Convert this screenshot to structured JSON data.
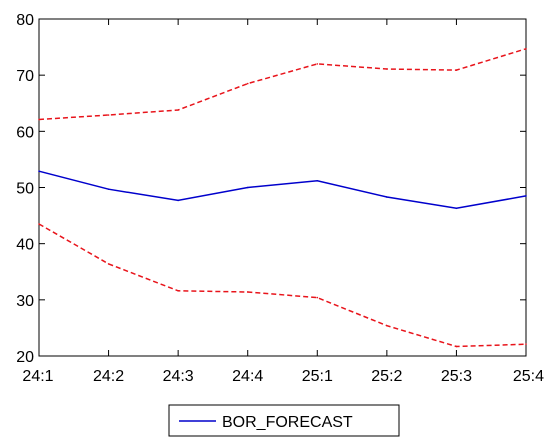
{
  "chart_data": {
    "type": "line",
    "categories": [
      "24:1",
      "24:2",
      "24:3",
      "24:4",
      "25:1",
      "25:2",
      "25:3",
      "25:4"
    ],
    "ylim": [
      20,
      80
    ],
    "yticks": [
      20,
      30,
      40,
      50,
      60,
      70,
      80
    ],
    "grid": false,
    "legend_position": "bottom-center",
    "series": [
      {
        "name": "BOR_FORECAST",
        "style": "solid",
        "color": "#0000cc",
        "values": [
          52.9,
          49.7,
          47.7,
          50.0,
          51.2,
          48.3,
          46.3,
          48.5
        ]
      },
      {
        "name": "",
        "style": "dashed",
        "color": "#e8141b",
        "values": [
          62.1,
          62.9,
          63.8,
          68.5,
          72.0,
          71.1,
          70.9,
          74.7
        ]
      },
      {
        "name": "",
        "style": "dashed",
        "color": "#e8141b",
        "values": [
          43.5,
          36.4,
          31.6,
          31.4,
          30.4,
          25.4,
          21.7,
          22.1
        ]
      }
    ]
  }
}
